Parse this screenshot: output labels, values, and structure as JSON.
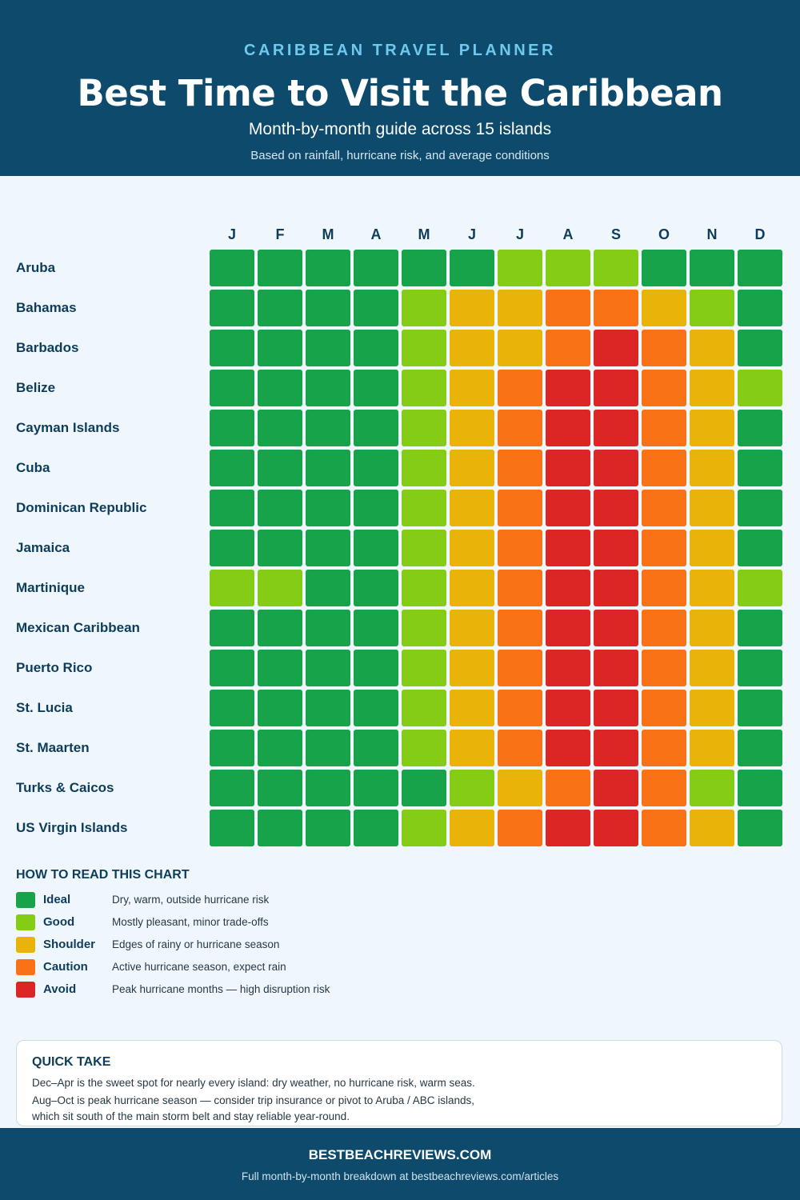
{
  "header": {
    "eyebrow": "CARIBBEAN TRAVEL PLANNER",
    "title": "Best Time to Visit the Caribbean",
    "subtitle": "Month-by-month guide across 15 islands",
    "note": "Based on rainfall, hurricane risk, and average conditions"
  },
  "chart_data": {
    "type": "heatmap",
    "title": "Best Time to Visit the Caribbean",
    "months": [
      "J",
      "F",
      "M",
      "A",
      "M",
      "J",
      "J",
      "A",
      "S",
      "O",
      "N",
      "D"
    ],
    "islands": [
      "Aruba",
      "Bahamas",
      "Barbados",
      "Belize",
      "Cayman Islands",
      "Cuba",
      "Dominican Republic",
      "Jamaica",
      "Martinique",
      "Mexican Caribbean",
      "Puerto Rico",
      "St. Lucia",
      "St. Maarten",
      "Turks & Caicos",
      "US Virgin Islands"
    ],
    "ratings": [
      [
        "ideal",
        "ideal",
        "ideal",
        "ideal",
        "ideal",
        "ideal",
        "good",
        "good",
        "good",
        "ideal",
        "ideal",
        "ideal"
      ],
      [
        "ideal",
        "ideal",
        "ideal",
        "ideal",
        "good",
        "shoulder",
        "shoulder",
        "caution",
        "caution",
        "shoulder",
        "good",
        "ideal"
      ],
      [
        "ideal",
        "ideal",
        "ideal",
        "ideal",
        "good",
        "shoulder",
        "shoulder",
        "caution",
        "avoid",
        "caution",
        "shoulder",
        "ideal"
      ],
      [
        "ideal",
        "ideal",
        "ideal",
        "ideal",
        "good",
        "shoulder",
        "caution",
        "avoid",
        "avoid",
        "caution",
        "shoulder",
        "good"
      ],
      [
        "ideal",
        "ideal",
        "ideal",
        "ideal",
        "good",
        "shoulder",
        "caution",
        "avoid",
        "avoid",
        "caution",
        "shoulder",
        "ideal"
      ],
      [
        "ideal",
        "ideal",
        "ideal",
        "ideal",
        "good",
        "shoulder",
        "caution",
        "avoid",
        "avoid",
        "caution",
        "shoulder",
        "ideal"
      ],
      [
        "ideal",
        "ideal",
        "ideal",
        "ideal",
        "good",
        "shoulder",
        "caution",
        "avoid",
        "avoid",
        "caution",
        "shoulder",
        "ideal"
      ],
      [
        "ideal",
        "ideal",
        "ideal",
        "ideal",
        "good",
        "shoulder",
        "caution",
        "avoid",
        "avoid",
        "caution",
        "shoulder",
        "ideal"
      ],
      [
        "good",
        "good",
        "ideal",
        "ideal",
        "good",
        "shoulder",
        "caution",
        "avoid",
        "avoid",
        "caution",
        "shoulder",
        "good"
      ],
      [
        "ideal",
        "ideal",
        "ideal",
        "ideal",
        "good",
        "shoulder",
        "caution",
        "avoid",
        "avoid",
        "caution",
        "shoulder",
        "ideal"
      ],
      [
        "ideal",
        "ideal",
        "ideal",
        "ideal",
        "good",
        "shoulder",
        "caution",
        "avoid",
        "avoid",
        "caution",
        "shoulder",
        "ideal"
      ],
      [
        "ideal",
        "ideal",
        "ideal",
        "ideal",
        "good",
        "shoulder",
        "caution",
        "avoid",
        "avoid",
        "caution",
        "shoulder",
        "ideal"
      ],
      [
        "ideal",
        "ideal",
        "ideal",
        "ideal",
        "good",
        "shoulder",
        "caution",
        "avoid",
        "avoid",
        "caution",
        "shoulder",
        "ideal"
      ],
      [
        "ideal",
        "ideal",
        "ideal",
        "ideal",
        "ideal",
        "good",
        "shoulder",
        "caution",
        "avoid",
        "caution",
        "good",
        "ideal"
      ],
      [
        "ideal",
        "ideal",
        "ideal",
        "ideal",
        "good",
        "shoulder",
        "caution",
        "avoid",
        "avoid",
        "caution",
        "shoulder",
        "ideal"
      ]
    ],
    "colors": {
      "ideal": "#16a34a",
      "good": "#84cc16",
      "shoulder": "#eab308",
      "caution": "#f97316",
      "avoid": "#dc2626"
    }
  },
  "legend": {
    "heading": "HOW TO READ THIS CHART",
    "items": [
      {
        "key": "ideal",
        "label": "Ideal",
        "desc": "Dry, warm, outside hurricane risk"
      },
      {
        "key": "good",
        "label": "Good",
        "desc": "Mostly pleasant, minor trade-offs"
      },
      {
        "key": "shoulder",
        "label": "Shoulder",
        "desc": "Edges of rainy or hurricane season"
      },
      {
        "key": "caution",
        "label": "Caution",
        "desc": "Active hurricane season, expect rain"
      },
      {
        "key": "avoid",
        "label": "Avoid",
        "desc": "Peak hurricane months — high disruption risk"
      }
    ]
  },
  "quick_take": {
    "heading": "QUICK TAKE",
    "lines": [
      "Dec–Apr is the sweet spot for nearly every island: dry weather, no hurricane risk, warm seas.",
      "Aug–Oct is peak hurricane season — consider trip insurance or pivot to Aruba / ABC islands,",
      "which sit south of the main storm belt and stay reliable year-round."
    ]
  },
  "footer": {
    "brand": "BESTBEACHREVIEWS.COM",
    "note": "Full month-by-month breakdown at bestbeachreviews.com/articles"
  }
}
